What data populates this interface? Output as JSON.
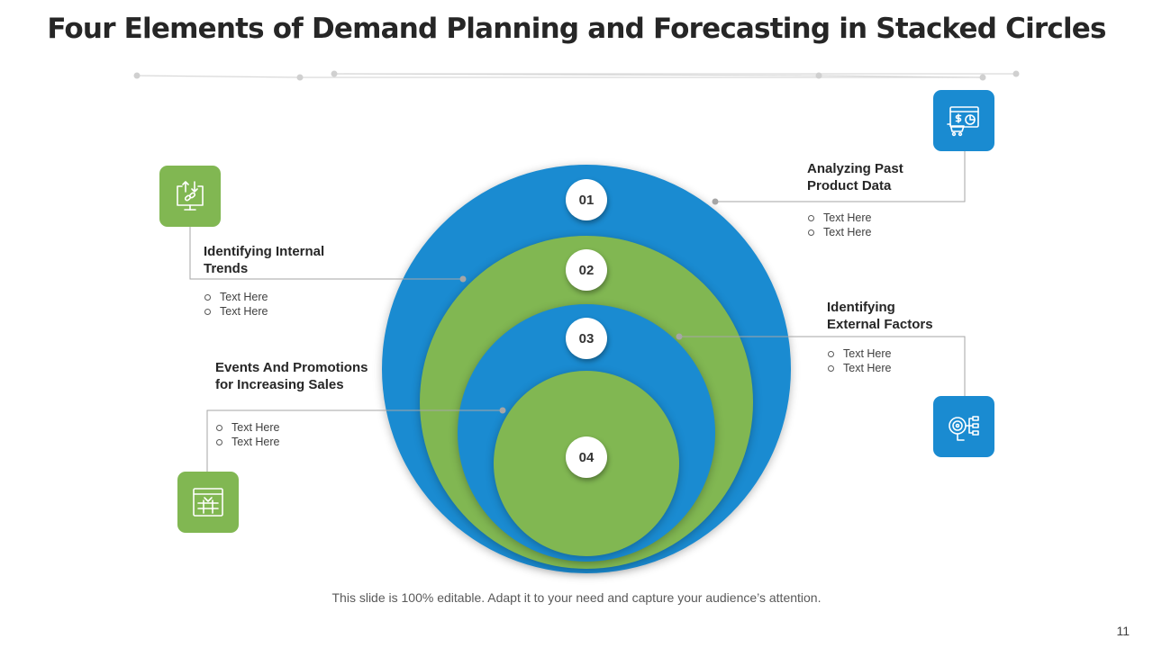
{
  "title": "Four Elements of Demand Planning and Forecasting in Stacked Circles",
  "colors": {
    "blue": "#1a8bd1",
    "green": "#81b752",
    "connector": "#a6a6a6"
  },
  "circles": [
    {
      "number": "01",
      "color": "blue"
    },
    {
      "number": "02",
      "color": "green"
    },
    {
      "number": "03",
      "color": "blue"
    },
    {
      "number": "04",
      "color": "green"
    }
  ],
  "elements": [
    {
      "number": "01",
      "heading_lines": [
        "Analyzing Past",
        "Product Data"
      ],
      "bullets": [
        "Text Here",
        "Text Here"
      ],
      "icon": "sales-dashboard-icon"
    },
    {
      "number": "02",
      "heading_lines": [
        "Identifying Internal",
        "Trends"
      ],
      "bullets": [
        "Text Here",
        "Text Here"
      ],
      "icon": "monitor-link-icon"
    },
    {
      "number": "03",
      "heading_lines": [
        "Identifying",
        "External Factors"
      ],
      "bullets": [
        "Text Here",
        "Text Here"
      ],
      "icon": "target-flow-icon"
    },
    {
      "number": "04",
      "heading_lines": [
        "Events And Promotions",
        "for Increasing Sales"
      ],
      "bullets": [
        "Text Here",
        "Text Here"
      ],
      "icon": "calendar-icon"
    }
  ],
  "footer": "This slide is 100% editable. Adapt it to your need and capture your audience’s attention.",
  "page_number": "11"
}
